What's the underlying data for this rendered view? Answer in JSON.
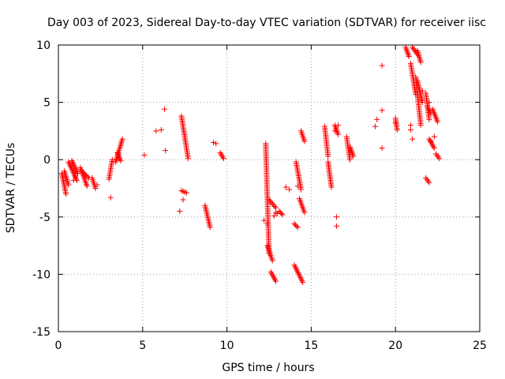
{
  "chart_data": {
    "type": "scatter",
    "title": "Day 003 of 2023, Sidereal Day-to-day VTEC variation (SDTVAR) for receiver iisc",
    "xlabel": "GPS time / hours",
    "ylabel": "SDTVAR / TECUs",
    "xlim": [
      0,
      25
    ],
    "ylim": [
      -15,
      10
    ],
    "x_ticks": [
      "0",
      "5",
      "10",
      "15",
      "20",
      "25"
    ],
    "y_ticks": [
      "-15",
      "-10",
      "-5",
      "0",
      "5",
      "10"
    ],
    "grid": true,
    "marker": "plus",
    "color": "#ff0000",
    "segments": [
      {
        "x0": 0.2,
        "x1": 0.45,
        "y0": -1.2,
        "y1": -3.0
      },
      {
        "x0": 0.35,
        "x1": 0.6,
        "y0": -1.0,
        "y1": -2.2
      },
      {
        "x0": 0.6,
        "x1": 1.1,
        "y0": -0.2,
        "y1": -1.8
      },
      {
        "x0": 0.8,
        "x1": 1.15,
        "y0": -0.1,
        "y1": -1.2
      },
      {
        "x0": 1.3,
        "x1": 1.7,
        "y0": -0.7,
        "y1": -2.3
      },
      {
        "x0": 1.4,
        "x1": 1.8,
        "y0": -1.0,
        "y1": -1.6
      },
      {
        "x0": 2.0,
        "x1": 2.2,
        "y0": -1.6,
        "y1": -2.5
      },
      {
        "x0": 3.0,
        "x1": 3.2,
        "y0": -1.7,
        "y1": 0.0
      },
      {
        "x0": 3.4,
        "x1": 3.8,
        "y0": -0.2,
        "y1": 1.8
      },
      {
        "x0": 3.5,
        "x1": 3.7,
        "y0": 0.6,
        "y1": -0.1
      },
      {
        "x0": 7.3,
        "x1": 7.7,
        "y0": 3.8,
        "y1": 0.1
      },
      {
        "x0": 7.3,
        "x1": 7.6,
        "y0": -2.7,
        "y1": -2.9
      },
      {
        "x0": 8.7,
        "x1": 9.0,
        "y0": -4.0,
        "y1": -5.9
      },
      {
        "x0": 9.6,
        "x1": 9.8,
        "y0": 0.6,
        "y1": 0.1
      },
      {
        "x0": 12.3,
        "x1": 12.5,
        "y0": 1.4,
        "y1": -8.2
      },
      {
        "x0": 12.4,
        "x1": 12.7,
        "y0": -7.5,
        "y1": -8.8
      },
      {
        "x0": 12.6,
        "x1": 12.9,
        "y0": -9.8,
        "y1": -10.6
      },
      {
        "x0": 12.5,
        "x1": 12.9,
        "y0": -3.5,
        "y1": -4.2
      },
      {
        "x0": 13.1,
        "x1": 13.3,
        "y0": -4.5,
        "y1": -4.8
      },
      {
        "x0": 14.0,
        "x1": 14.5,
        "y0": -9.2,
        "y1": -10.7
      },
      {
        "x0": 14.1,
        "x1": 14.4,
        "y0": -0.2,
        "y1": -2.6
      },
      {
        "x0": 14.3,
        "x1": 14.6,
        "y0": -3.4,
        "y1": -4.6
      },
      {
        "x0": 14.4,
        "x1": 14.6,
        "y0": 2.5,
        "y1": 1.6
      },
      {
        "x0": 14.0,
        "x1": 14.2,
        "y0": -5.6,
        "y1": -5.9
      },
      {
        "x0": 15.8,
        "x1": 16.0,
        "y0": 2.9,
        "y1": 0.3
      },
      {
        "x0": 16.0,
        "x1": 16.2,
        "y0": -0.2,
        "y1": -2.4
      },
      {
        "x0": 16.4,
        "x1": 16.6,
        "y0": 3.0,
        "y1": 2.2
      },
      {
        "x0": 17.1,
        "x1": 17.3,
        "y0": 2.0,
        "y1": 0.0
      },
      {
        "x0": 17.3,
        "x1": 17.5,
        "y0": 1.1,
        "y1": 0.3
      },
      {
        "x0": 20.0,
        "x1": 20.1,
        "y0": 3.6,
        "y1": 2.6
      },
      {
        "x0": 20.6,
        "x1": 20.8,
        "y0": 9.8,
        "y1": 9.0
      },
      {
        "x0": 20.9,
        "x1": 21.2,
        "y0": 8.4,
        "y1": 5.7
      },
      {
        "x0": 21.0,
        "x1": 21.3,
        "y0": 9.8,
        "y1": 9.2
      },
      {
        "x0": 21.2,
        "x1": 21.5,
        "y0": 7.2,
        "y1": 3.0
      },
      {
        "x0": 21.3,
        "x1": 21.5,
        "y0": 9.5,
        "y1": 8.5
      },
      {
        "x0": 21.3,
        "x1": 21.6,
        "y0": 6.9,
        "y1": 5.0
      },
      {
        "x0": 21.8,
        "x1": 22.0,
        "y0": 5.8,
        "y1": 3.5
      },
      {
        "x0": 21.9,
        "x1": 22.1,
        "y0": 4.6,
        "y1": 4.0
      },
      {
        "x0": 22.0,
        "x1": 22.3,
        "y0": 1.8,
        "y1": 1.0
      },
      {
        "x0": 22.2,
        "x1": 22.5,
        "y0": 4.4,
        "y1": 3.3
      },
      {
        "x0": 22.4,
        "x1": 22.6,
        "y0": 0.5,
        "y1": 0.1
      },
      {
        "x0": 21.8,
        "x1": 22.0,
        "y0": -1.6,
        "y1": -2.0
      }
    ],
    "points": [
      [
        0.9,
        -1.8
      ],
      [
        1.0,
        -1.5
      ],
      [
        2.3,
        -2.2
      ],
      [
        3.1,
        -3.3
      ],
      [
        5.1,
        0.4
      ],
      [
        5.8,
        2.5
      ],
      [
        6.1,
        2.6
      ],
      [
        6.3,
        4.4
      ],
      [
        6.35,
        0.8
      ],
      [
        7.2,
        -4.5
      ],
      [
        7.4,
        -3.5
      ],
      [
        9.2,
        1.5
      ],
      [
        9.35,
        1.4
      ],
      [
        12.2,
        -5.3
      ],
      [
        12.4,
        -5.6
      ],
      [
        12.9,
        -4.6
      ],
      [
        12.8,
        -4.9
      ],
      [
        13.0,
        -4.7
      ],
      [
        13.5,
        -2.4
      ],
      [
        13.7,
        -2.6
      ],
      [
        14.2,
        -2.3
      ],
      [
        16.5,
        -5.0
      ],
      [
        16.5,
        -5.8
      ],
      [
        16.4,
        2.5
      ],
      [
        16.6,
        3.0
      ],
      [
        18.8,
        2.9
      ],
      [
        18.9,
        3.5
      ],
      [
        19.2,
        4.3
      ],
      [
        19.2,
        1.0
      ],
      [
        19.2,
        8.2
      ],
      [
        20.0,
        3.2
      ],
      [
        20.9,
        2.6
      ],
      [
        20.9,
        3.0
      ],
      [
        21.0,
        1.8
      ],
      [
        21.6,
        6.0
      ],
      [
        22.0,
        5.0
      ],
      [
        22.3,
        2.0
      ],
      [
        22.1,
        1.6
      ]
    ]
  }
}
